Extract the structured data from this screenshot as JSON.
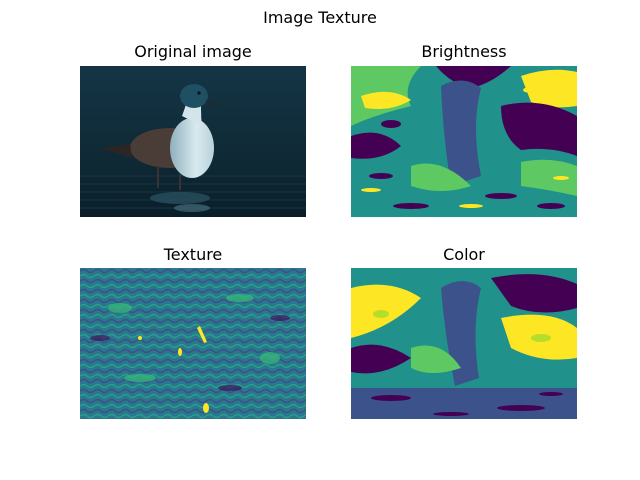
{
  "figure": {
    "title": "Image Texture"
  },
  "panels": [
    {
      "title": "Original image",
      "content": "photo of a northern pintail duck standing in dark water at night"
    },
    {
      "title": "Brightness",
      "content": "segmentation label map, viridis colormap"
    },
    {
      "title": "Texture",
      "content": "texture feature map, viridis colormap"
    },
    {
      "title": "Color",
      "content": "segmentation label map, viridis colormap"
    }
  ],
  "colors": {
    "viridis_dark": "#440154",
    "viridis_teal": "#21918c",
    "viridis_blue": "#3b528b",
    "viridis_green": "#5ec962",
    "viridis_yellow": "#fde725",
    "viridis_lime": "#b5de2b",
    "photo_background": "#0f2a36",
    "photo_water": "#0c2230",
    "duck_breast": "#c9dde3",
    "duck_head": "#1e4f63"
  }
}
